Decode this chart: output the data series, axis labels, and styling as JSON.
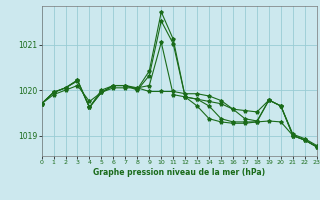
{
  "xlabel": "Graphe pression niveau de la mer (hPa)",
  "bg_color": "#cce8ee",
  "grid_color": "#99ccd4",
  "line_color": "#1a6b1a",
  "text_color": "#1a6b1a",
  "xlim": [
    0,
    23
  ],
  "ylim": [
    1018.55,
    1021.85
  ],
  "yticks": [
    1019,
    1020,
    1021
  ],
  "xticks": [
    0,
    1,
    2,
    3,
    4,
    5,
    6,
    7,
    8,
    9,
    10,
    11,
    12,
    13,
    14,
    15,
    16,
    17,
    18,
    19,
    20,
    21,
    22,
    23
  ],
  "series": [
    [
      1019.7,
      1019.9,
      1020.0,
      1020.1,
      1019.75,
      1019.95,
      1020.05,
      1020.05,
      1020.05,
      1020.1,
      1021.05,
      1019.9,
      1019.85,
      1019.8,
      1019.75,
      1019.7,
      1019.58,
      1019.55,
      1019.52,
      1019.78,
      1019.65,
      1019.03,
      1018.93,
      1018.78
    ],
    [
      1019.7,
      1019.95,
      1020.05,
      1020.2,
      1019.62,
      1019.95,
      1020.1,
      1020.1,
      1020.0,
      1020.32,
      1021.52,
      1021.02,
      1019.85,
      1019.8,
      1019.65,
      1019.37,
      1019.3,
      1019.3,
      1019.3,
      1019.32,
      1019.3,
      1019.0,
      1018.9,
      1018.75
    ],
    [
      1019.7,
      1019.95,
      1020.05,
      1020.22,
      1019.62,
      1019.95,
      1020.1,
      1020.1,
      1020.02,
      1020.42,
      1021.72,
      1021.12,
      1019.85,
      1019.65,
      1019.37,
      1019.3,
      1019.27,
      1019.27,
      1019.3,
      1019.78,
      1019.65,
      1019.0,
      1018.9,
      1018.75
    ],
    [
      1019.7,
      1019.95,
      1020.05,
      1020.22,
      1019.62,
      1020.0,
      1020.1,
      1020.1,
      1020.05,
      1019.97,
      1019.97,
      1019.97,
      1019.92,
      1019.92,
      1019.87,
      1019.77,
      1019.58,
      1019.37,
      1019.32,
      1019.78,
      1019.65,
      1019.0,
      1018.9,
      1018.75
    ]
  ]
}
